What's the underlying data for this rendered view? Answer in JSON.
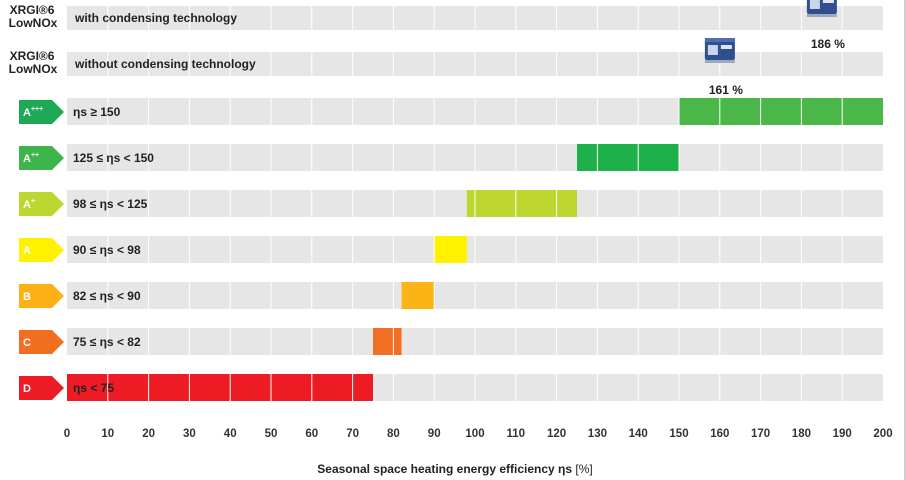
{
  "chart_data": {
    "type": "bar",
    "xlabel": "Seasonal space heating energy efficiency ηs",
    "xunit": "[%]",
    "xlim": [
      0,
      200
    ],
    "x_ticks": [
      "0",
      "10",
      "20",
      "30",
      "40",
      "50",
      "60",
      "70",
      "80",
      "90",
      "100",
      "110",
      "120",
      "130",
      "140",
      "150",
      "160",
      "170",
      "180",
      "190",
      "200"
    ],
    "products": [
      {
        "name_line1": "XRGI®6",
        "name_line2": "LowNOx",
        "label": "with condensing technology",
        "value": 186,
        "value_label": "186 %",
        "icon": "chp-unit-icon"
      },
      {
        "name_line1": "XRGI®6",
        "name_line2": "LowNOx",
        "label": "without condensing technology",
        "value": 161,
        "value_label": "161 %",
        "icon": "chp-unit-icon"
      }
    ],
    "classes": [
      {
        "class": "A",
        "sup": "+++",
        "label": "ηs ≥ 150",
        "min": 150,
        "max": 200,
        "color": "#4ab748"
      },
      {
        "class": "A",
        "sup": "++",
        "label": "125 ≤ ηs < 150",
        "min": 125,
        "max": 150,
        "color": "#1eb04b"
      },
      {
        "class": "A",
        "sup": "+",
        "label": "98 ≤ ηs < 125",
        "min": 98,
        "max": 125,
        "color": "#bed730"
      },
      {
        "class": "A",
        "sup": "",
        "label": "90 ≤ ηs < 98",
        "min": 90,
        "max": 98,
        "color": "#fff200"
      },
      {
        "class": "B",
        "sup": "",
        "label": "82 ≤ ηs < 90",
        "min": 82,
        "max": 90,
        "color": "#fbb416"
      },
      {
        "class": "C",
        "sup": "",
        "label": "75 ≤ ηs < 82",
        "min": 75,
        "max": 82,
        "color": "#f26f26"
      },
      {
        "class": "D",
        "sup": "",
        "label": "ηs < 75",
        "min": 0,
        "max": 75,
        "color": "#ed1c24"
      }
    ],
    "colors": {
      "track": "#e6e6e6",
      "arrow_a3": "#1fa855",
      "arrow_a2": "#3db54a",
      "arrow_a1": "#bcd72f",
      "arrow_a": "#fff100",
      "arrow_b": "#fbb016",
      "arrow_c": "#f26f21",
      "arrow_d": "#ed1c24"
    },
    "grid": true
  }
}
